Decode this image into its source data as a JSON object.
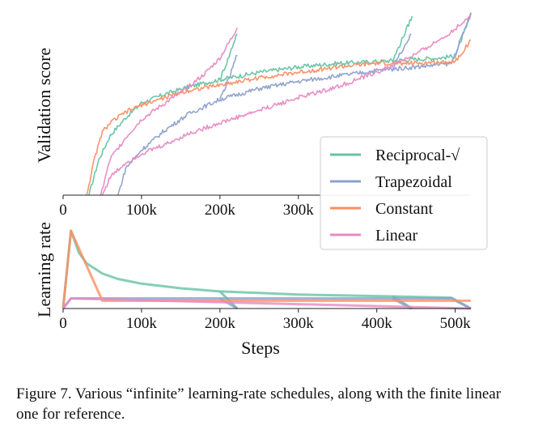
{
  "caption": "Figure 7. Various “infinite” learning-rate schedules, along with the finite linear one for reference.",
  "colors": {
    "reciprocal_sqrt": "#66c2a5",
    "trapezoidal": "#8da0cb",
    "constant": "#fc8d62",
    "linear": "#e78ac3"
  },
  "chart_data": [
    {
      "type": "line",
      "ylabel": "Validation score",
      "xlabel": "",
      "xlim": [
        0,
        520000
      ],
      "ylim": [
        0,
        1
      ],
      "yticks_hidden": true,
      "xticks": [
        0,
        100000,
        200000,
        300000
      ],
      "xtick_labels": [
        "0",
        "100k",
        "200k",
        "300k"
      ],
      "legend": {
        "placement": "lower-right",
        "entries": [
          {
            "label": "Reciprocal-√",
            "color": "#66c2a5"
          },
          {
            "label": "Trapezoidal",
            "color": "#8da0cb"
          },
          {
            "label": "Constant",
            "color": "#fc8d62"
          },
          {
            "label": "Linear",
            "color": "#e78ac3"
          }
        ]
      },
      "series": [
        {
          "key": "reciprocal_sqrt",
          "color": "#66c2a5",
          "x": [
            33000,
            45000,
            60000,
            80000,
            100000,
            130000,
            160000,
            200000,
            250000,
            300000,
            350000,
            400000,
            440000,
            480000,
            500000,
            520000
          ],
          "y": [
            0.0,
            0.19,
            0.33,
            0.43,
            0.51,
            0.56,
            0.6,
            0.64,
            0.68,
            0.71,
            0.73,
            0.74,
            0.75,
            0.76,
            0.77,
            1.0
          ]
        },
        {
          "key": "reciprocal_sqrt_cooldown_200k",
          "color": "#66c2a5",
          "x": [
            200000,
            210000,
            222000
          ],
          "y": [
            0.64,
            0.75,
            0.9
          ]
        },
        {
          "key": "reciprocal_sqrt_cooldown_420k",
          "color": "#66c2a5",
          "x": [
            420000,
            432000,
            445000
          ],
          "y": [
            0.74,
            0.86,
            0.99
          ]
        },
        {
          "key": "trapezoidal",
          "color": "#8da0cb",
          "x": [
            70000,
            80000,
            100000,
            130000,
            160000,
            200000,
            250000,
            300000,
            350000,
            400000,
            450000,
            495000,
            520000
          ],
          "y": [
            0.0,
            0.15,
            0.25,
            0.36,
            0.45,
            0.53,
            0.59,
            0.63,
            0.66,
            0.69,
            0.71,
            0.73,
            1.0
          ]
        },
        {
          "key": "trapezoidal_cooldown_200k",
          "color": "#8da0cb",
          "x": [
            200000,
            212000,
            222000
          ],
          "y": [
            0.53,
            0.65,
            0.78
          ]
        },
        {
          "key": "trapezoidal_cooldown_420k",
          "color": "#8da0cb",
          "x": [
            420000,
            432000,
            444000
          ],
          "y": [
            0.7,
            0.8,
            0.89
          ]
        },
        {
          "key": "constant",
          "color": "#fc8d62",
          "x": [
            30000,
            40000,
            50000,
            60000,
            80000,
            100000,
            130000,
            160000,
            200000,
            250000,
            300000,
            350000,
            400000,
            450000,
            500000,
            520000
          ],
          "y": [
            0.0,
            0.2,
            0.35,
            0.4,
            0.46,
            0.5,
            0.54,
            0.58,
            0.61,
            0.65,
            0.68,
            0.71,
            0.73,
            0.73,
            0.74,
            0.86
          ]
        },
        {
          "key": "linear",
          "color": "#e78ac3",
          "x": [
            50000,
            60000,
            80000,
            100000,
            130000,
            160000,
            200000,
            250000,
            300000,
            350000,
            400000,
            450000,
            480000,
            500000,
            520000
          ],
          "y": [
            0.0,
            0.1,
            0.18,
            0.23,
            0.28,
            0.34,
            0.4,
            0.47,
            0.54,
            0.6,
            0.68,
            0.78,
            0.86,
            0.92,
            1.0
          ]
        },
        {
          "key": "linear_short_run",
          "color": "#e78ac3",
          "x": [
            48000,
            60000,
            80000,
            100000,
            130000,
            160000,
            180000,
            200000,
            215000,
            222000
          ],
          "y": [
            0.0,
            0.2,
            0.32,
            0.42,
            0.51,
            0.6,
            0.67,
            0.76,
            0.87,
            0.93
          ]
        }
      ]
    },
    {
      "type": "line",
      "ylabel": "Learning rate",
      "xlabel": "Steps",
      "xlim": [
        0,
        520000
      ],
      "ylim": [
        0,
        1
      ],
      "yticks_hidden": true,
      "xticks": [
        0,
        100000,
        200000,
        300000,
        400000,
        500000
      ],
      "xtick_labels": [
        "0",
        "100k",
        "200k",
        "300k",
        "400k",
        "500k"
      ],
      "series": [
        {
          "key": "reciprocal_sqrt",
          "color": "#66c2a5",
          "x": [
            0,
            10000,
            20000,
            30000,
            50000,
            70000,
            100000,
            150000,
            200000,
            250000,
            300000,
            400000,
            495000,
            520000
          ],
          "y": [
            0,
            1.0,
            0.72,
            0.58,
            0.45,
            0.38,
            0.32,
            0.26,
            0.22,
            0.2,
            0.18,
            0.16,
            0.14,
            0
          ]
        },
        {
          "key": "reciprocal_sqrt_cooldown_200k",
          "color": "#66c2a5",
          "x": [
            200000,
            222000
          ],
          "y": [
            0.22,
            0
          ]
        },
        {
          "key": "reciprocal_sqrt_cooldown_420k",
          "color": "#66c2a5",
          "x": [
            420000,
            445000
          ],
          "y": [
            0.16,
            0
          ]
        },
        {
          "key": "trapezoidal",
          "color": "#8da0cb",
          "x": [
            0,
            10000,
            495000,
            520000
          ],
          "y": [
            0,
            0.13,
            0.13,
            0
          ]
        },
        {
          "key": "trapezoidal_cooldown_200k",
          "color": "#8da0cb",
          "x": [
            200000,
            222000
          ],
          "y": [
            0.13,
            0
          ]
        },
        {
          "key": "trapezoidal_cooldown_420k",
          "color": "#8da0cb",
          "x": [
            420000,
            444000
          ],
          "y": [
            0.13,
            0
          ]
        },
        {
          "key": "constant",
          "color": "#fc8d62",
          "x": [
            0,
            10000,
            50000,
            520000
          ],
          "y": [
            0,
            1.0,
            0.1,
            0.1
          ]
        },
        {
          "key": "linear",
          "color": "#e78ac3",
          "x": [
            0,
            10000,
            520000
          ],
          "y": [
            0,
            0.13,
            0
          ]
        }
      ]
    }
  ]
}
